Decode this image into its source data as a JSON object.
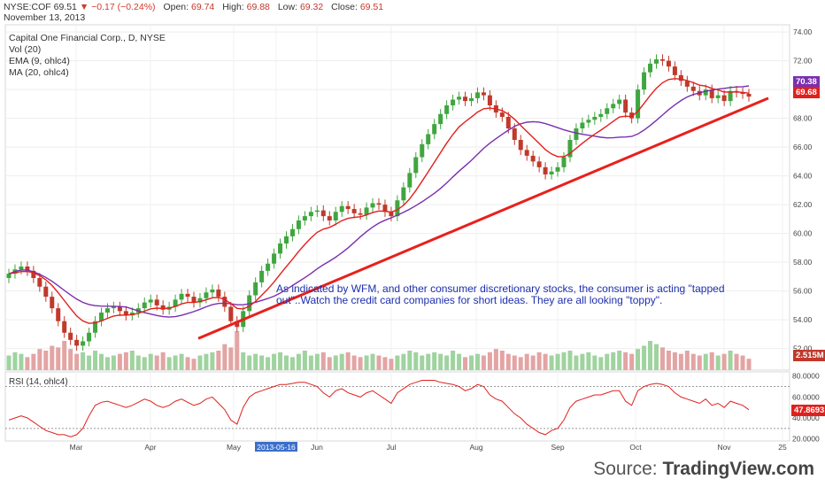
{
  "header": {
    "symbol": "NYSE:COF",
    "last": "69.51",
    "arrow": "▼",
    "change": "−0.17 (−0.24%)",
    "open_label": "Open:",
    "open": "69.74",
    "high_label": "High:",
    "high": "69.88",
    "low_label": "Low:",
    "low": "69.32",
    "close_label": "Close:",
    "close": "69.51",
    "date": "November 13, 2013"
  },
  "legend": {
    "title": "Capital One Financial Corp., D, NYSE",
    "vol": "Vol (20)",
    "ema": "EMA (9, ohlc4)",
    "ma": "MA (20, ohlc4)"
  },
  "annotation": "As indicated by WFM, and other consumer discretionary stocks, the consumer is acting \"tapped out\"..Watch the credit card companies for short ideas. They are all looking \"toppy\".",
  "rsi_label": "RSI (14, ohlc4)",
  "source": {
    "prefix": "Source: ",
    "brand": "TradingView.com"
  },
  "badges": {
    "ma": "70.38",
    "ema": "69.68",
    "volume": "2.515M",
    "rsi": "47.8693"
  },
  "colors": {
    "up": "#3fa63f",
    "down": "#c0392b",
    "ema": "#e0201c",
    "ma": "#7a2fb0",
    "trend": "#e8201c",
    "rsi": "#e0201c",
    "vol_up": "#9fd39f",
    "vol_down": "#e3a4a4"
  },
  "chart_data": {
    "type": "candlestick",
    "price_axis": {
      "range": [
        50.5,
        74.5
      ],
      "ticks": [
        "74.00",
        "72.00",
        "70.00",
        "68.00",
        "66.00",
        "64.00",
        "62.00",
        "60.00",
        "58.00",
        "56.00",
        "54.00",
        "52.00"
      ]
    },
    "rsi_axis": {
      "range": [
        18,
        84
      ],
      "ticks": [
        "80.0000",
        "60.0000",
        "40.0000",
        "20.0000"
      ],
      "levels": [
        70,
        30
      ]
    },
    "months": [
      "Mar",
      "Apr",
      "May",
      "2013-05-16",
      "Jun",
      "Jul",
      "Aug",
      "Sep",
      "Oct",
      "Nov",
      "25"
    ],
    "trendline": {
      "start": [
        "2013-04-17",
        52.7
      ],
      "end": [
        "2013-11-19",
        69.4
      ]
    },
    "closes": [
      57.2,
      57.5,
      57.7,
      57.4,
      56.9,
      56.3,
      55.6,
      54.8,
      53.9,
      53.1,
      52.6,
      52.2,
      52.5,
      53.1,
      53.9,
      54.5,
      54.8,
      54.9,
      54.6,
      54.3,
      54.5,
      54.8,
      55.2,
      55.4,
      55.0,
      54.7,
      54.9,
      55.4,
      55.8,
      55.6,
      55.2,
      55.5,
      55.9,
      56.1,
      55.6,
      54.9,
      53.9,
      53.5,
      54.6,
      55.7,
      56.6,
      57.4,
      57.9,
      58.6,
      59.3,
      59.8,
      60.3,
      60.9,
      61.2,
      61.5,
      61.6,
      61.2,
      60.9,
      61.5,
      61.9,
      61.7,
      61.4,
      61.3,
      61.8,
      62.1,
      62.0,
      61.5,
      61.2,
      62.3,
      63.2,
      64.2,
      65.3,
      66.2,
      66.9,
      67.6,
      68.3,
      68.9,
      69.3,
      69.5,
      69.2,
      69.4,
      69.8,
      69.6,
      68.9,
      68.4,
      68.1,
      67.3,
      66.5,
      65.8,
      65.4,
      65.0,
      64.6,
      64.1,
      64.3,
      64.6,
      65.3,
      66.5,
      67.3,
      67.7,
      67.9,
      68.1,
      68.3,
      68.7,
      69.0,
      69.3,
      68.4,
      68.0,
      70.0,
      71.2,
      71.8,
      72.1,
      72.0,
      71.6,
      71.0,
      70.6,
      70.2,
      69.9,
      69.6,
      70.0,
      69.4,
      69.6,
      69.2,
      69.9,
      69.8,
      69.7,
      69.51
    ],
    "volumes": [
      0.9,
      1.1,
      1.0,
      0.8,
      1.0,
      1.3,
      1.2,
      1.5,
      1.4,
      1.8,
      1.3,
      1.0,
      1.1,
      0.9,
      1.2,
      1.0,
      0.8,
      0.9,
      1.0,
      1.1,
      1.2,
      0.9,
      0.8,
      1.0,
      0.9,
      1.1,
      0.8,
      0.9,
      1.0,
      0.8,
      0.7,
      0.9,
      1.0,
      1.1,
      1.2,
      1.6,
      1.4,
      2.4,
      1.1,
      0.9,
      1.0,
      0.9,
      0.8,
      1.0,
      1.1,
      0.9,
      0.8,
      1.0,
      1.2,
      0.9,
      1.0,
      1.1,
      0.8,
      0.9,
      1.0,
      1.1,
      0.9,
      0.8,
      0.9,
      1.0,
      0.9,
      0.8,
      0.7,
      0.9,
      1.0,
      1.2,
      1.1,
      0.9,
      1.0,
      1.1,
      1.0,
      0.9,
      1.2,
      1.0,
      0.8,
      0.9,
      1.0,
      0.9,
      1.1,
      1.3,
      1.2,
      1.0,
      0.9,
      0.8,
      1.0,
      0.9,
      1.1,
      1.0,
      0.9,
      1.0,
      1.1,
      1.2,
      0.9,
      1.0,
      1.1,
      0.9,
      0.8,
      1.0,
      1.1,
      1.2,
      1.1,
      1.0,
      1.3,
      1.5,
      1.8,
      1.6,
      1.4,
      1.2,
      1.1,
      1.0,
      1.2,
      1.0,
      0.9,
      1.0,
      1.1,
      0.9,
      1.0,
      1.2,
      1.0,
      0.9,
      0.7
    ],
    "rsi": [
      38,
      40,
      42,
      40,
      36,
      32,
      28,
      26,
      24,
      24,
      22,
      24,
      30,
      42,
      52,
      55,
      56,
      54,
      52,
      50,
      52,
      55,
      58,
      56,
      52,
      50,
      52,
      56,
      58,
      55,
      52,
      54,
      58,
      60,
      54,
      48,
      38,
      34,
      50,
      60,
      64,
      66,
      68,
      70,
      72,
      72,
      73,
      74,
      74,
      72,
      70,
      64,
      60,
      66,
      68,
      64,
      62,
      60,
      64,
      66,
      62,
      58,
      54,
      64,
      68,
      72,
      74,
      76,
      76,
      76,
      74,
      73,
      72,
      70,
      66,
      68,
      72,
      70,
      62,
      58,
      56,
      50,
      44,
      40,
      34,
      30,
      26,
      24,
      28,
      30,
      38,
      50,
      56,
      58,
      60,
      62,
      62,
      64,
      66,
      66,
      56,
      52,
      66,
      70,
      72,
      73,
      72,
      70,
      64,
      60,
      58,
      56,
      54,
      58,
      52,
      54,
      50,
      56,
      54,
      52,
      47.87
    ]
  }
}
